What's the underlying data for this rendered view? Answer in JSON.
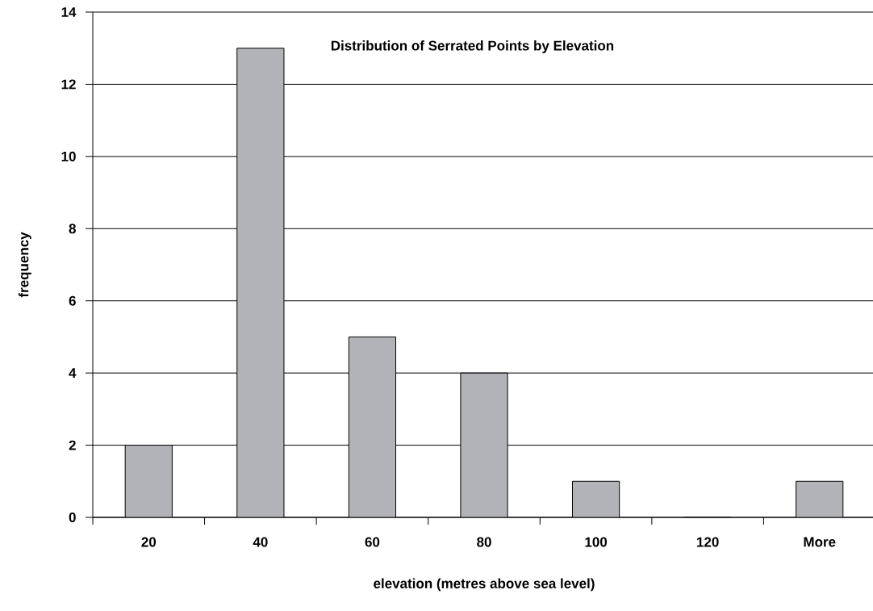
{
  "chart_data": {
    "type": "bar",
    "title": "Distribution of Serrated Points by Elevation",
    "xlabel": "elevation (metres above sea level)",
    "ylabel": "frequency",
    "categories": [
      "20",
      "40",
      "60",
      "80",
      "100",
      "120",
      "More"
    ],
    "values": [
      2,
      13,
      5,
      4,
      1,
      0,
      1
    ],
    "color": "#b2b3b7",
    "ylim": [
      0,
      14
    ],
    "yticks": [
      0,
      2,
      4,
      6,
      8,
      10,
      12,
      14
    ],
    "grid": "y"
  }
}
